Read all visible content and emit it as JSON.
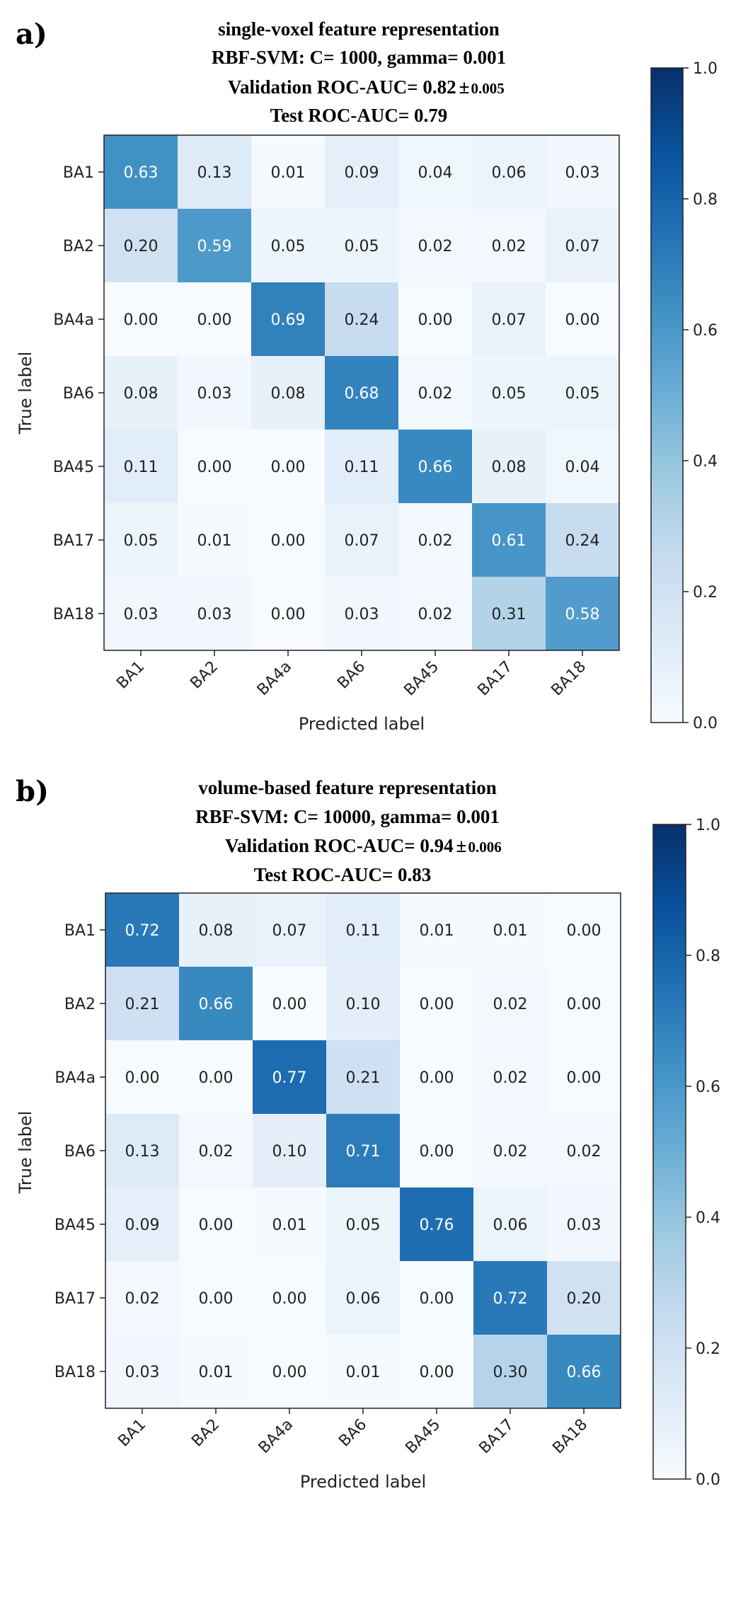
{
  "figure": {
    "panels": [
      {
        "letter": "a)",
        "title_lines": [
          "single-voxel feature representation",
          "RBF-SVM: C= 1000, gamma= 0.001"
        ],
        "validation_prefix": "Validation ROC-AUC= 0.82",
        "validation_pm": "±",
        "validation_std": "0.005",
        "test_line": "Test ROC-AUC= 0.79"
      },
      {
        "letter": "b)",
        "title_lines": [
          "volume-based  feature representation",
          "RBF-SVM: C= 10000, gamma= 0.001"
        ],
        "validation_prefix": "Validation ROC-AUC= 0.94",
        "validation_pm": "±",
        "validation_std": "0.006",
        "test_line": "Test ROC-AUC= 0.83"
      }
    ]
  },
  "chart_data": [
    {
      "type": "heatmap",
      "title": "single-voxel feature representation",
      "xlabel": "Predicted label",
      "ylabel": "True label",
      "x_categories": [
        "BA1",
        "BA2",
        "BA4a",
        "BA6",
        "BA45",
        "BA17",
        "BA18"
      ],
      "y_categories": [
        "BA1",
        "BA2",
        "BA4a",
        "BA6",
        "BA45",
        "BA17",
        "BA18"
      ],
      "values": [
        [
          0.63,
          0.13,
          0.01,
          0.09,
          0.04,
          0.06,
          0.03
        ],
        [
          0.2,
          0.59,
          0.05,
          0.05,
          0.02,
          0.02,
          0.07
        ],
        [
          0.0,
          0.0,
          0.69,
          0.24,
          0.0,
          0.07,
          0.0
        ],
        [
          0.08,
          0.03,
          0.08,
          0.68,
          0.02,
          0.05,
          0.05
        ],
        [
          0.11,
          0.0,
          0.0,
          0.11,
          0.66,
          0.08,
          0.04
        ],
        [
          0.05,
          0.01,
          0.0,
          0.07,
          0.02,
          0.61,
          0.24
        ],
        [
          0.03,
          0.03,
          0.0,
          0.03,
          0.02,
          0.31,
          0.58
        ]
      ],
      "colormap": "Blues",
      "colorbar_range": [
        0.0,
        1.0
      ],
      "colorbar_ticks": [
        "0.0",
        "0.2",
        "0.4",
        "0.6",
        "0.8",
        "1.0"
      ]
    },
    {
      "type": "heatmap",
      "title": "volume-based feature representation",
      "xlabel": "Predicted label",
      "ylabel": "True label",
      "x_categories": [
        "BA1",
        "BA2",
        "BA4a",
        "BA6",
        "BA45",
        "BA17",
        "BA18"
      ],
      "y_categories": [
        "BA1",
        "BA2",
        "BA4a",
        "BA6",
        "BA45",
        "BA17",
        "BA18"
      ],
      "values": [
        [
          0.72,
          0.08,
          0.07,
          0.11,
          0.01,
          0.01,
          0.0
        ],
        [
          0.21,
          0.66,
          0.0,
          0.1,
          0.0,
          0.02,
          0.0
        ],
        [
          0.0,
          0.0,
          0.77,
          0.21,
          0.0,
          0.02,
          0.0
        ],
        [
          0.13,
          0.02,
          0.1,
          0.71,
          0.0,
          0.02,
          0.02
        ],
        [
          0.09,
          0.0,
          0.01,
          0.05,
          0.76,
          0.06,
          0.03
        ],
        [
          0.02,
          0.0,
          0.0,
          0.06,
          0.0,
          0.72,
          0.2
        ],
        [
          0.03,
          0.01,
          0.0,
          0.01,
          0.0,
          0.3,
          0.66
        ]
      ],
      "colormap": "Blues",
      "colorbar_range": [
        0.0,
        1.0
      ],
      "colorbar_ticks": [
        "0.0",
        "0.2",
        "0.4",
        "0.6",
        "0.8",
        "1.0"
      ]
    }
  ]
}
